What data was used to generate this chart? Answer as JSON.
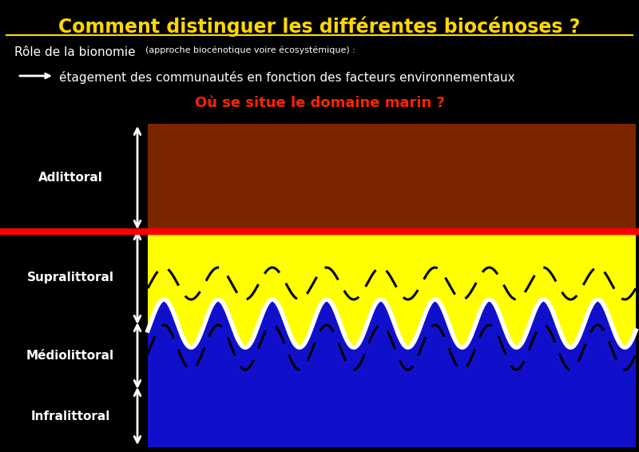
{
  "title": "Comment distinguer les différentes biocénoses ?",
  "title_color": "#FFD700",
  "title_fontsize": 17,
  "bg_color": "#000000",
  "subtitle1_main": "Rôle de la bionomie ",
  "subtitle1_small": "(approche biocénotique voire écosystémique) :",
  "subtitle2": "étagement des communautés en fonction des facteurs environnementaux",
  "question": "Où se situe le domaine marin ?",
  "question_color": "#FF2200",
  "text_color": "#FFFFFF",
  "yellow_color": "#FFFF00",
  "brown_color": "#7B2500",
  "blue_color": "#1010CC",
  "red_line_color": "#FF0000",
  "white_color": "#FFFFFF",
  "zone_labels": [
    "Adlittoral",
    "Supralittoral",
    "Médiolittoral",
    "Infralittoral"
  ]
}
